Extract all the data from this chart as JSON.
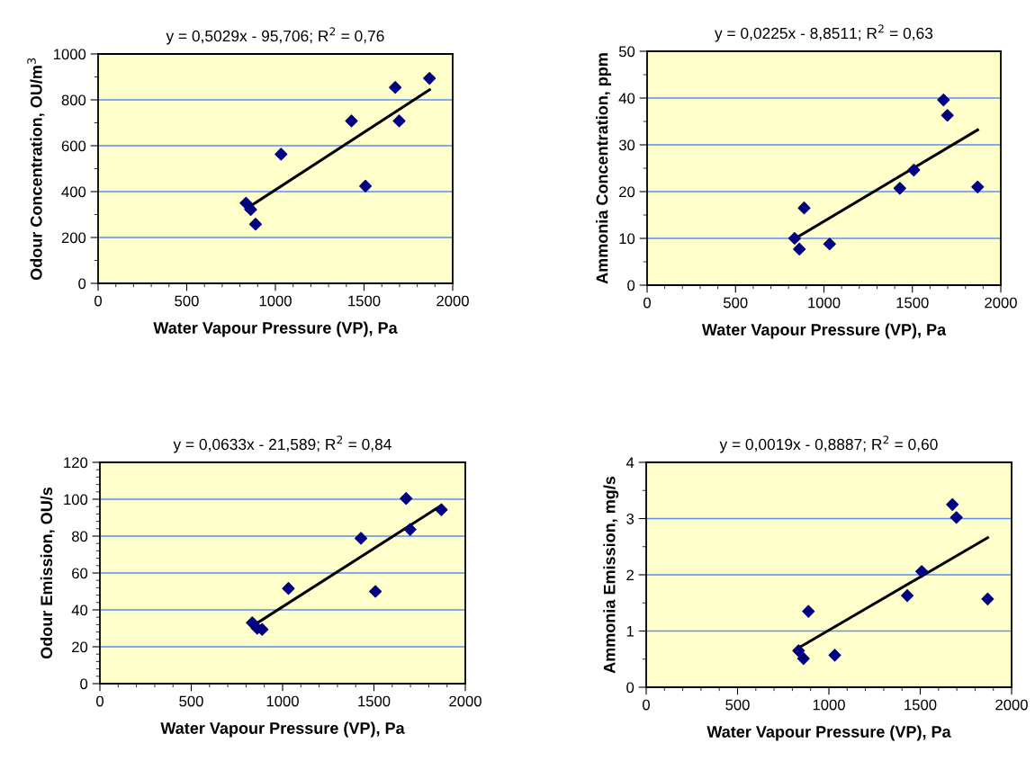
{
  "chart_data": [
    {
      "type": "scatter",
      "title": "y = 0,5029x - 95,706; R$^{2}$ = 0,76",
      "xlabel": "Water Vapour Pressure (VP), Pa",
      "ylabel": "Odour Concentration, OU/m$^{3}$",
      "xlim": [
        0,
        2000
      ],
      "ylim": [
        0,
        1000
      ],
      "grid": "y",
      "xticks": [
        0,
        {
          "value": 100,
          "label": null
        },
        {
          "value": 200,
          "label": null
        },
        {
          "value": 300,
          "label": null
        },
        {
          "value": 400,
          "label": null
        },
        500,
        {
          "value": 600,
          "label": null
        },
        {
          "value": 700,
          "label": null
        },
        {
          "value": 800,
          "label": null
        },
        {
          "value": 900,
          "label": null
        },
        1000,
        {
          "value": 1100,
          "label": null
        },
        {
          "value": 1200,
          "label": null
        },
        {
          "value": 1300,
          "label": null
        },
        {
          "value": 1400,
          "label": null
        },
        1500,
        {
          "value": 1600,
          "label": null
        },
        {
          "value": 1700,
          "label": null
        },
        {
          "value": 1800,
          "label": null
        },
        {
          "value": 1900,
          "label": null
        },
        2000
      ],
      "yticks": [
        0,
        {
          "value": 100,
          "label": null
        },
        200,
        {
          "value": 300,
          "label": null
        },
        400,
        {
          "value": 500,
          "label": null
        },
        600,
        {
          "value": 700,
          "label": null
        },
        800,
        {
          "value": 900,
          "label": null
        },
        1000
      ],
      "series": [
        {
          "type": "scatter",
          "marker": "diamond",
          "color": "#000080",
          "x": [
            834,
            861,
            888,
            1032,
            1429,
            1508,
            1676,
            1698,
            1869
          ],
          "values": [
            350,
            322,
            258,
            563,
            708,
            424,
            854,
            708,
            894
          ]
        },
        {
          "type": "line",
          "marker": "none",
          "color": "#000000",
          "x": [
            834,
            1869
          ],
          "values": [
            324,
            844
          ]
        }
      ]
    },
    {
      "type": "scatter",
      "title": "y = 0,0225x - 8,8511; R$^{2}$ = 0,63",
      "xlabel": "Water Vapour Pressure (VP), Pa",
      "ylabel": "Ammonia Concentration, ppm",
      "xlim": [
        0,
        2000
      ],
      "ylim": [
        0,
        50
      ],
      "grid": "y",
      "xticks": [
        0,
        {
          "value": 100,
          "label": null
        },
        {
          "value": 200,
          "label": null
        },
        {
          "value": 300,
          "label": null
        },
        {
          "value": 400,
          "label": null
        },
        500,
        {
          "value": 600,
          "label": null
        },
        {
          "value": 700,
          "label": null
        },
        {
          "value": 800,
          "label": null
        },
        {
          "value": 900,
          "label": null
        },
        1000,
        {
          "value": 1100,
          "label": null
        },
        {
          "value": 1200,
          "label": null
        },
        {
          "value": 1300,
          "label": null
        },
        {
          "value": 1400,
          "label": null
        },
        1500,
        {
          "value": 1600,
          "label": null
        },
        {
          "value": 1700,
          "label": null
        },
        {
          "value": 1800,
          "label": null
        },
        {
          "value": 1900,
          "label": null
        },
        2000
      ],
      "yticks": [
        0,
        {
          "value": 5,
          "label": null
        },
        10,
        {
          "value": 15,
          "label": null
        },
        20,
        {
          "value": 25,
          "label": null
        },
        30,
        {
          "value": 35,
          "label": null
        },
        40,
        {
          "value": 45,
          "label": null
        },
        50
      ],
      "series": [
        {
          "type": "scatter",
          "marker": "diamond",
          "color": "#000080",
          "x": [
            834,
            861,
            888,
            1032,
            1429,
            1508,
            1676,
            1698,
            1869
          ],
          "values": [
            10.0,
            7.7,
            16.5,
            8.8,
            20.7,
            24.6,
            39.6,
            36.3,
            21.0
          ]
        },
        {
          "type": "line",
          "marker": "none",
          "color": "#000000",
          "x": [
            834,
            1869
          ],
          "values": [
            9.9,
            33.2
          ]
        }
      ]
    },
    {
      "type": "scatter",
      "title": "y = 0,0633x - 21,589; R$^{2}$ = 0,84",
      "xlabel": "Water Vapour Pressure (VP), Pa",
      "ylabel": "Odour Emission, OU/s",
      "xlim": [
        0,
        2000
      ],
      "ylim": [
        0,
        120
      ],
      "grid": "y",
      "xticks": [
        0,
        {
          "value": 100,
          "label": null
        },
        {
          "value": 200,
          "label": null
        },
        {
          "value": 300,
          "label": null
        },
        {
          "value": 400,
          "label": null
        },
        500,
        {
          "value": 600,
          "label": null
        },
        {
          "value": 700,
          "label": null
        },
        {
          "value": 800,
          "label": null
        },
        {
          "value": 900,
          "label": null
        },
        1000,
        {
          "value": 1100,
          "label": null
        },
        {
          "value": 1200,
          "label": null
        },
        {
          "value": 1300,
          "label": null
        },
        {
          "value": 1400,
          "label": null
        },
        1500,
        {
          "value": 1600,
          "label": null
        },
        {
          "value": 1700,
          "label": null
        },
        {
          "value": 1800,
          "label": null
        },
        {
          "value": 1900,
          "label": null
        },
        2000
      ],
      "yticks": [
        0,
        {
          "value": 4,
          "label": null
        },
        {
          "value": 8,
          "label": null
        },
        {
          "value": 12,
          "label": null
        },
        {
          "value": 16,
          "label": null
        },
        20,
        {
          "value": 24,
          "label": null
        },
        {
          "value": 28,
          "label": null
        },
        {
          "value": 32,
          "label": null
        },
        {
          "value": 36,
          "label": null
        },
        40,
        {
          "value": 44,
          "label": null
        },
        {
          "value": 48,
          "label": null
        },
        {
          "value": 52,
          "label": null
        },
        {
          "value": 56,
          "label": null
        },
        60,
        {
          "value": 64,
          "label": null
        },
        {
          "value": 68,
          "label": null
        },
        {
          "value": 72,
          "label": null
        },
        {
          "value": 76,
          "label": null
        },
        80,
        {
          "value": 84,
          "label": null
        },
        {
          "value": 88,
          "label": null
        },
        {
          "value": 92,
          "label": null
        },
        {
          "value": 96,
          "label": null
        },
        100,
        {
          "value": 104,
          "label": null
        },
        {
          "value": 108,
          "label": null
        },
        {
          "value": 112,
          "label": null
        },
        {
          "value": 116,
          "label": null
        },
        120
      ],
      "series": [
        {
          "type": "scatter",
          "marker": "diamond",
          "color": "#000080",
          "x": [
            834,
            861,
            888,
            1032,
            1429,
            1508,
            1676,
            1698,
            1869
          ],
          "values": [
            33.0,
            30.0,
            29.4,
            51.6,
            78.8,
            50.0,
            100.4,
            83.6,
            94.3
          ]
        },
        {
          "type": "line",
          "marker": "none",
          "color": "#000000",
          "x": [
            834,
            1869
          ],
          "values": [
            31.2,
            96.7
          ]
        }
      ]
    },
    {
      "type": "scatter",
      "title": "y = 0,0019x - 0,8887; R$^{2}$ = 0,60",
      "xlabel": "Water Vapour Pressure (VP), Pa",
      "ylabel": "Ammonia Emission, mg/s",
      "xlim": [
        0,
        2000
      ],
      "ylim": [
        0,
        4
      ],
      "grid": "y",
      "xticks": [
        0,
        {
          "value": 100,
          "label": null
        },
        {
          "value": 200,
          "label": null
        },
        {
          "value": 300,
          "label": null
        },
        {
          "value": 400,
          "label": null
        },
        500,
        {
          "value": 600,
          "label": null
        },
        {
          "value": 700,
          "label": null
        },
        {
          "value": 800,
          "label": null
        },
        {
          "value": 900,
          "label": null
        },
        1000,
        {
          "value": 1100,
          "label": null
        },
        {
          "value": 1200,
          "label": null
        },
        {
          "value": 1300,
          "label": null
        },
        {
          "value": 1400,
          "label": null
        },
        1500,
        {
          "value": 1600,
          "label": null
        },
        {
          "value": 1700,
          "label": null
        },
        {
          "value": 1800,
          "label": null
        },
        {
          "value": 1900,
          "label": null
        },
        2000
      ],
      "yticks": [
        0,
        {
          "value": 0.5,
          "label": null
        },
        1,
        {
          "value": 1.5,
          "label": null
        },
        2,
        {
          "value": 2.5,
          "label": null
        },
        3,
        {
          "value": 3.5,
          "label": null
        },
        4
      ],
      "series": [
        {
          "type": "scatter",
          "marker": "diamond",
          "color": "#000080",
          "x": [
            834,
            861,
            888,
            1032,
            1429,
            1508,
            1676,
            1698,
            1869
          ],
          "values": [
            0.65,
            0.51,
            1.35,
            0.57,
            1.63,
            2.06,
            3.25,
            3.02,
            1.57
          ]
        },
        {
          "type": "line",
          "marker": "none",
          "color": "#000000",
          "x": [
            834,
            1869
          ],
          "values": [
            0.7,
            2.66
          ]
        }
      ]
    }
  ]
}
